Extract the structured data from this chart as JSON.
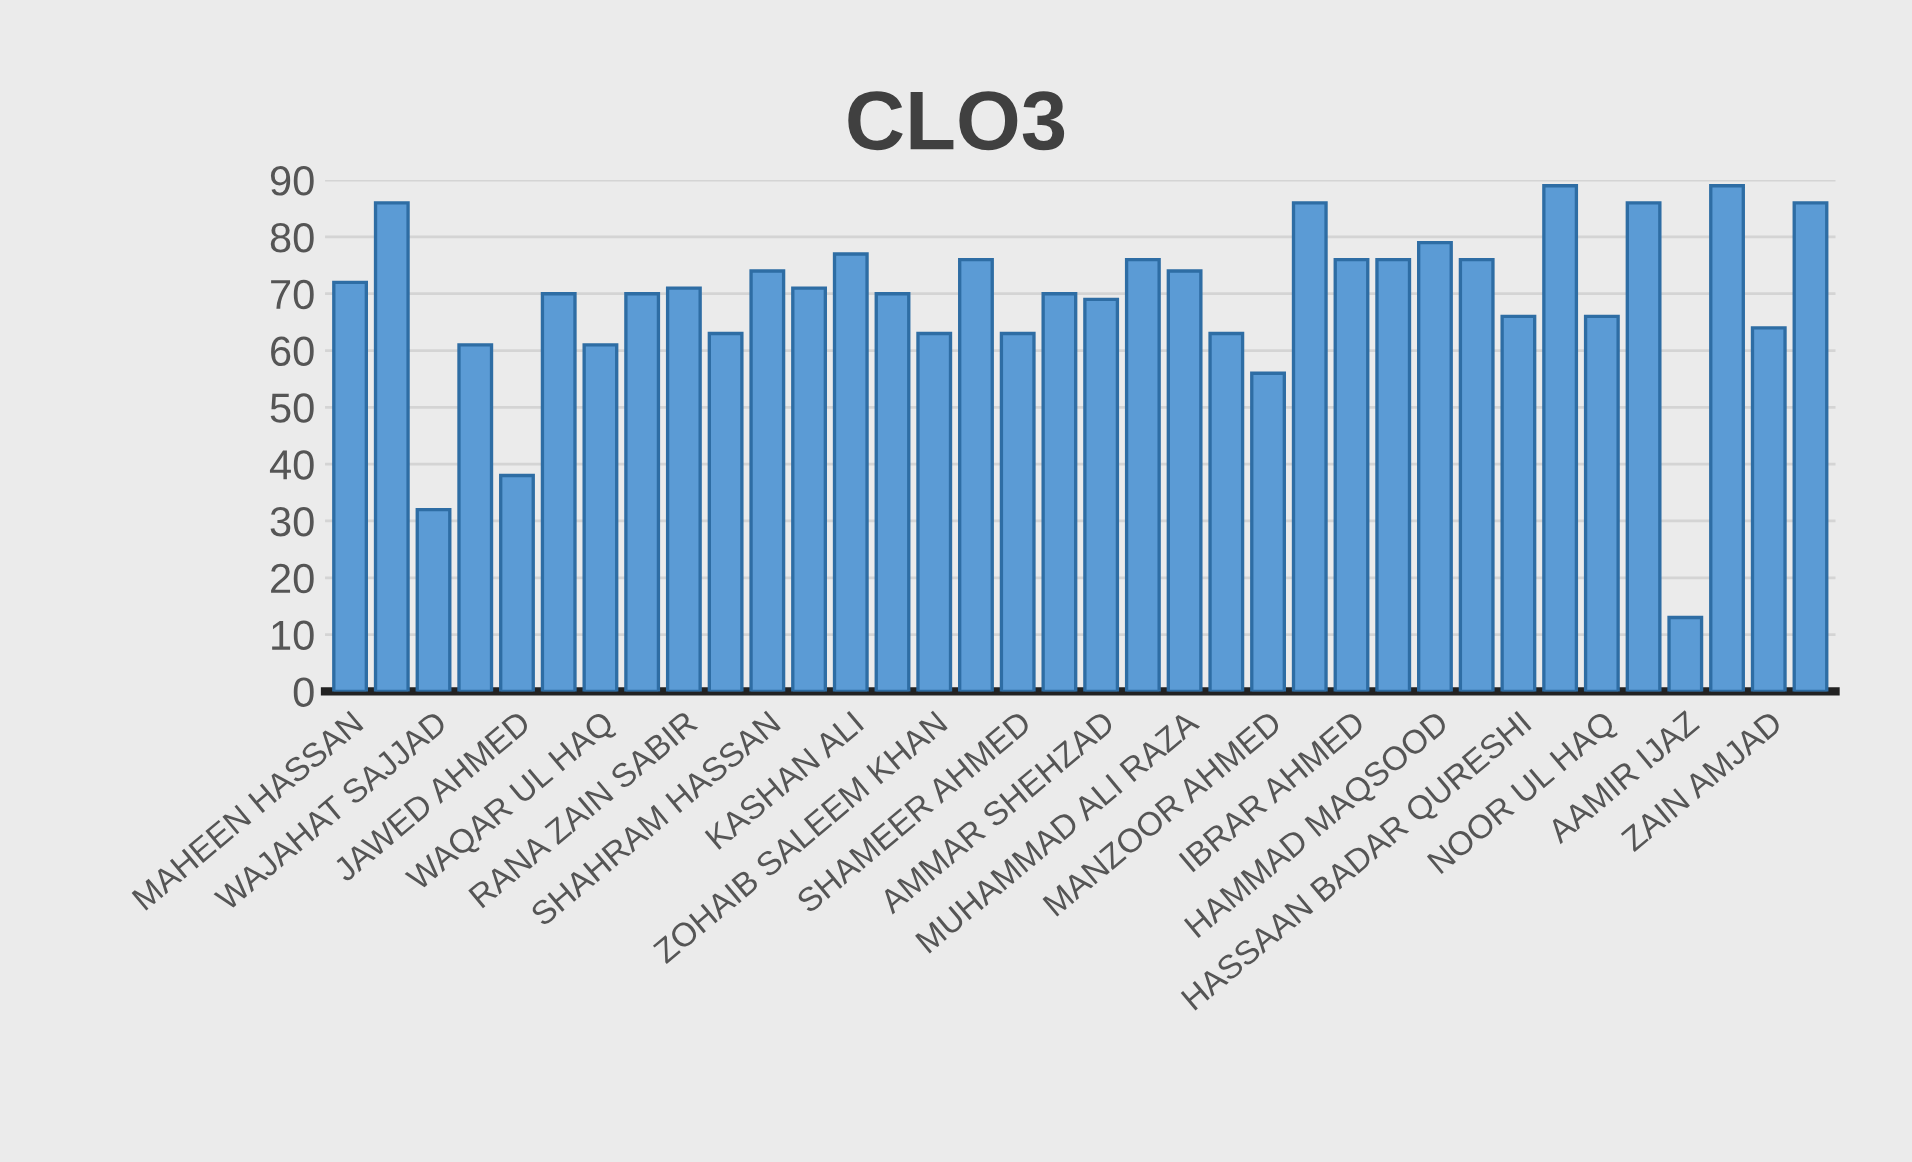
{
  "chart_data": {
    "type": "bar",
    "title": "CLO3",
    "categories": [
      "MAHEEN HASSAN",
      null,
      "WAJAHAT SAJJAD",
      null,
      "JAWED AHMED",
      null,
      "WAQAR UL HAQ",
      null,
      "RANA ZAIN SABIR",
      null,
      "SHAHRAM HASSAN",
      null,
      "KASHAN ALI",
      null,
      "ZOHAIB SALEEM KHAN",
      null,
      "SHAMEER AHMED",
      null,
      "AMMAR SHEHZAD",
      null,
      "MUHAMMAD ALI RAZA",
      null,
      "MANZOOR AHMED",
      null,
      "IBRAR AHMED",
      null,
      "HAMMAD MAQSOOD",
      null,
      "HASSAAN BADAR QURESHI",
      null,
      "NOOR UL HAQ",
      null,
      "AAMIR IJAZ",
      null,
      "ZAIN AMJAD",
      null
    ],
    "values": [
      72,
      86,
      32,
      61,
      38,
      70,
      61,
      70,
      71,
      63,
      74,
      71,
      77,
      70,
      63,
      76,
      63,
      70,
      69,
      76,
      74,
      63,
      56,
      86,
      76,
      76,
      79,
      76,
      66,
      89,
      66,
      86,
      13,
      89,
      64,
      86
    ],
    "color": "#5b9bd5",
    "ylim": [
      0,
      90
    ],
    "yticks": [
      0,
      10,
      20,
      30,
      40,
      50,
      60,
      70,
      80,
      90
    ],
    "grid": "y"
  }
}
